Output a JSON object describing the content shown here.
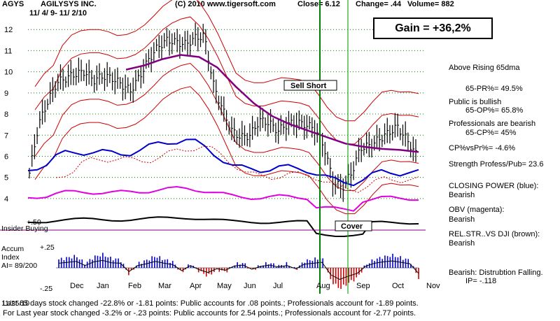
{
  "header": {
    "ticker": "AGYS",
    "company": "AGILYSYS INC.",
    "date_range": "11/ 4/ 9- 11/ 2/10",
    "copyright": "(C) 2010 www.tigersoft.com",
    "close": "Close=   6.12",
    "change": "Change= .44",
    "volume": "Volume=  882"
  },
  "gain_box": "Gain = +36,2%",
  "annotations": {
    "sell_short": "Sell Short",
    "cover": "Cover",
    "insider": "Insider Buying",
    "insider_level": "+.50",
    "accum_title": "Accum",
    "accum_index": "Index",
    "accum_ai": "AI= 89/200",
    "accum_top": "+.25",
    "accum_bottom": "-.25",
    "date_code": "11/25/10"
  },
  "side_panel": [
    "Above Rising 65dma",
    "65-PR%= 49.5%",
    "Public is bullish",
    "65-OP%= 65.8%",
    "Professionals are bearish",
    "65-CP%= 45%",
    "CP%vsPr%= -4.6%",
    "Strength Profess/Pub= 23.6",
    "CLOSING POWER (blue):",
    "Bearish",
    "OBV (magenta):",
    "Bearish",
    "REL.STR..VS DJI (brown):",
    "Bearish",
    "Bearish: Distrubtion Falling.",
    "IP= -.118"
  ],
  "footer": {
    "line1": "Last 65 days stock changed -22.8% or -1.81 points:  Public accounts for  .08 points.;  Professionals account for -1.89 points.",
    "line2": "For Last year stock changed -3.2% or -.23 points:  Public accounts for  2.54 points.;  Professionals account for -2.77 points."
  },
  "colors": {
    "price_bars": "#000000",
    "bands": "#cc0000",
    "ma65": "#800080",
    "closing_power": "#0000cc",
    "obv": "#e000e0",
    "rel_strength": "#5a2a00",
    "accum_pos": "#0000cc",
    "accum_neg": "#cc0000",
    "signal_sell": "#008000",
    "signal_cover": "#22aa22"
  },
  "chart_data": {
    "type": "line",
    "x": [
      "Dec",
      "Jan",
      "Feb",
      "Mar",
      "Apr",
      "May",
      "Jun",
      "Jul",
      "Aug",
      "Sep",
      "Oct",
      "Nov"
    ],
    "y_ticks": [
      4,
      5,
      6,
      7,
      8,
      9,
      10,
      11,
      12
    ],
    "ylim": [
      3.4,
      13
    ],
    "accum_ticks": [
      "+.25",
      "-.25"
    ],
    "signals": [
      {
        "label": "Sell Short",
        "month": "Aug",
        "price": 7.3
      },
      {
        "label": "Cover",
        "month": "Aug",
        "price": 4.6
      }
    ],
    "series": [
      {
        "name": "CLOSING POWER (blue)"
      },
      {
        "name": "OBV (magenta)"
      },
      {
        "name": "REL.STR..VS DJI (brown)"
      }
    ],
    "price_closes": [
      5.2,
      7.5,
      8.6,
      9.5,
      9.7,
      9.9,
      10,
      9.6,
      9.8,
      9.7,
      9.4,
      9.1,
      9.8,
      10.6,
      11.2,
      11.5,
      11.4,
      11.3,
      11.6,
      11.7,
      9.4,
      8.2,
      7.2,
      6.9,
      7.0,
      7.7,
      7.6,
      7.2,
      7.5,
      7.6,
      7.5,
      7.3,
      6.5,
      4.8,
      4.5,
      5.2,
      6.4,
      6.5,
      6.8,
      7.1,
      7.4,
      6.8,
      6.1
    ],
    "ma65": [
      10.1,
      10.3,
      10.6,
      10.8,
      10.7,
      10.2,
      9.3,
      8.5,
      7.9,
      7.5,
      7.2,
      6.9,
      6.6,
      6.45,
      6.35,
      6.3,
      6.2
    ],
    "accum_values": [
      0.1,
      0.12,
      0.14,
      0.05,
      0.13,
      0.16,
      0.11,
      0.1,
      -0.08,
      0.05,
      0.09,
      0.14,
      0.1,
      0.07,
      -0.06,
      0.05,
      -0.04,
      -0.1,
      -0.02,
      -0.05,
      0.04,
      0.06,
      -0.03,
      0.03,
      0.06,
      0.02,
      0.05,
      -0.02,
      0.08,
      0.1,
      0.12,
      -0.15,
      -0.25,
      -0.18,
      -0.12,
      0.04,
      0.1,
      0.13,
      0.15,
      0.12,
      0.09,
      -0.12
    ]
  }
}
